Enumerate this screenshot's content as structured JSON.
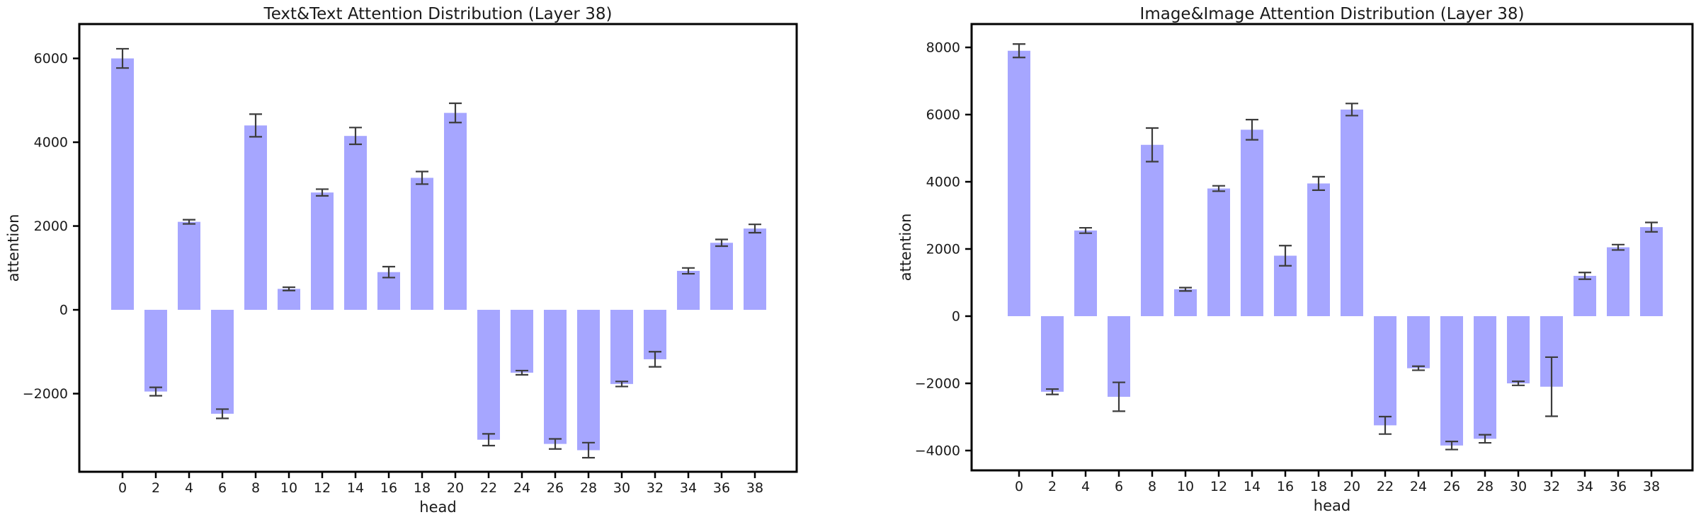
{
  "figure": {
    "background": "#ffffff",
    "bar_color": "#a6a6ff",
    "error_color": "#3c3c3c",
    "spine_color": "#000000"
  },
  "chart_data": [
    {
      "type": "bar",
      "title": "Text&Text Attention Distribution (Layer 38)",
      "xlabel": "head",
      "ylabel": "attention",
      "categories": [
        "0",
        "2",
        "4",
        "6",
        "8",
        "10",
        "12",
        "14",
        "16",
        "18",
        "20",
        "22",
        "24",
        "26",
        "28",
        "30",
        "32",
        "34",
        "36",
        "38"
      ],
      "values": [
        6000,
        -1950,
        2100,
        -2480,
        4400,
        500,
        2800,
        4150,
        900,
        3150,
        4700,
        -3100,
        -1500,
        -3200,
        -3350,
        -1770,
        -1180,
        930,
        1600,
        1940
      ],
      "errors": [
        230,
        100,
        50,
        110,
        270,
        40,
        80,
        200,
        130,
        150,
        230,
        140,
        50,
        120,
        180,
        60,
        180,
        70,
        80,
        100
      ],
      "yticks": [
        6000,
        4000,
        2000,
        0,
        -2000
      ],
      "ylim": [
        -3865,
        6820
      ],
      "grid": false,
      "legend": null
    },
    {
      "type": "bar",
      "title": "Image&Image Attention Distribution (Layer 38)",
      "xlabel": "head",
      "ylabel": "attention",
      "categories": [
        "0",
        "2",
        "4",
        "6",
        "8",
        "10",
        "12",
        "14",
        "16",
        "18",
        "20",
        "22",
        "24",
        "26",
        "28",
        "30",
        "32",
        "34",
        "36",
        "38"
      ],
      "values": [
        7900,
        -2250,
        2550,
        -2400,
        5100,
        800,
        3800,
        5550,
        1800,
        3950,
        6150,
        -3250,
        -1550,
        -3850,
        -3650,
        -2000,
        -2100,
        1200,
        2050,
        2650
      ],
      "errors": [
        200,
        80,
        80,
        430,
        500,
        50,
        80,
        300,
        300,
        200,
        180,
        260,
        60,
        120,
        120,
        60,
        880,
        100,
        80,
        140
      ],
      "yticks": [
        8000,
        6000,
        4000,
        2000,
        0,
        -2000,
        -4000
      ],
      "ylim": [
        -4590,
        8695
      ],
      "grid": false,
      "legend": null
    }
  ]
}
